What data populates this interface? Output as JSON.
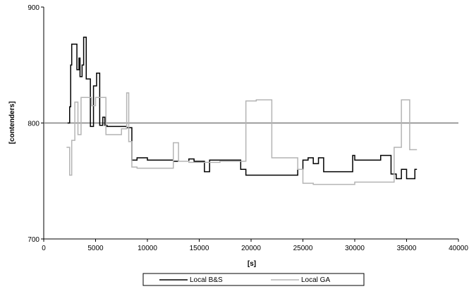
{
  "chart_data": {
    "type": "line",
    "title": "",
    "xlabel": "[s]",
    "ylabel": "[contenders]",
    "xlim": [
      0,
      40000
    ],
    "ylim": [
      700,
      900
    ],
    "x_ticks": [
      0,
      5000,
      10000,
      15000,
      20000,
      25000,
      30000,
      35000,
      40000
    ],
    "y_ticks": [
      700,
      800,
      900
    ],
    "reference_line": 800,
    "grid": false,
    "legend_position": "bottom",
    "series": [
      {
        "name": "Local B&S",
        "color": "#000000",
        "step": true,
        "x": [
          2300,
          2500,
          2600,
          2700,
          3200,
          3400,
          3500,
          3700,
          3850,
          4100,
          4500,
          4800,
          5100,
          5400,
          5700,
          5900,
          6100,
          6500,
          8000,
          8500,
          9000,
          10000,
          11000,
          12000,
          12500,
          13000,
          14000,
          14500,
          15500,
          16000,
          17000,
          17500,
          18500,
          19000,
          19500,
          21000,
          22000,
          23000,
          24000,
          24500,
          25000,
          25500,
          26000,
          26500,
          27000,
          28000,
          29500,
          29800,
          30000,
          31000,
          32500,
          33500,
          34000,
          34500,
          35000,
          35800,
          36000
        ],
        "y": [
          800,
          814,
          850,
          868,
          846,
          856,
          840,
          850,
          874,
          838,
          797,
          832,
          843,
          798,
          805,
          798,
          797,
          797,
          796,
          768,
          770,
          768,
          768,
          768,
          767,
          767,
          769,
          767,
          758,
          768,
          768,
          768,
          768,
          760,
          755,
          755,
          755,
          755,
          755,
          760,
          768,
          770,
          765,
          770,
          758,
          758,
          758,
          772,
          768,
          768,
          772,
          756,
          752,
          760,
          752,
          760,
          760
        ]
      },
      {
        "name": "Local GA",
        "color": "#b4b4b4",
        "step": true,
        "x": [
          2200,
          2500,
          2700,
          3000,
          3300,
          3600,
          4300,
          4600,
          5000,
          5500,
          6000,
          7000,
          7500,
          8000,
          8200,
          8500,
          9000,
          10000,
          11000,
          12000,
          12500,
          13000,
          14000,
          17000,
          19500,
          20500,
          22000,
          24000,
          24500,
          25000,
          26000,
          28000,
          30000,
          32000,
          33800,
          34500,
          35300,
          36000
        ],
        "y": [
          779,
          755,
          785,
          818,
          790,
          822,
          822,
          815,
          822,
          822,
          790,
          790,
          795,
          826,
          784,
          762,
          761,
          761,
          761,
          761,
          783,
          767,
          766,
          767,
          819,
          820,
          770,
          770,
          760,
          748,
          747,
          747,
          749,
          749,
          779,
          820,
          777,
          777
        ]
      }
    ]
  }
}
